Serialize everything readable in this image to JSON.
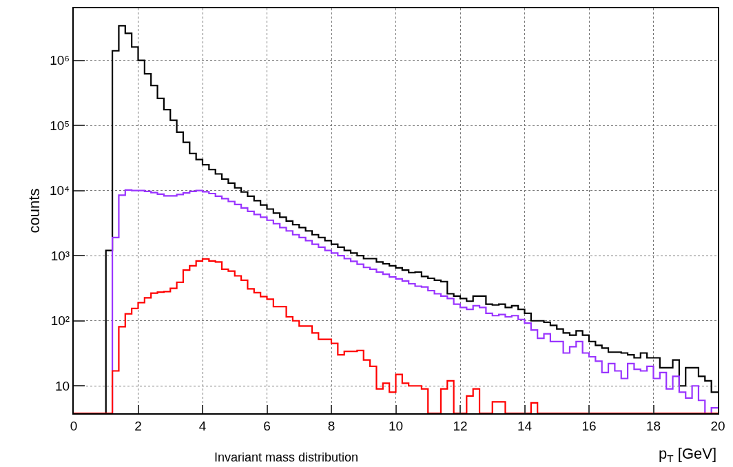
{
  "chart_data": {
    "type": "histogram",
    "xlabel": "p$_{T}$ [GeV]",
    "ylabel": "counts",
    "annotations": [
      "Invariant mass distribution"
    ],
    "bins": [
      0,
      0.2,
      0.4,
      0.6,
      0.8,
      1,
      1.2,
      1.4,
      1.6,
      1.8,
      2,
      2.2,
      2.4,
      2.6,
      2.8,
      3,
      3.2,
      3.4,
      3.6,
      3.8,
      4,
      4.2,
      4.4,
      4.6,
      4.8,
      5,
      5.2,
      5.4,
      5.6,
      5.8,
      6,
      6.2,
      6.4,
      6.6,
      6.8,
      7,
      7.2,
      7.4,
      7.6,
      7.8,
      8,
      8.2,
      8.4,
      8.6,
      8.8,
      9,
      9.2,
      9.4,
      9.6,
      9.8,
      10,
      10.2,
      10.4,
      10.6,
      10.8,
      11,
      11.2,
      11.4,
      11.6,
      11.8,
      12,
      12.2,
      12.4,
      12.6,
      12.8,
      13,
      13.2,
      13.4,
      13.6,
      13.8,
      14,
      14.2,
      14.4,
      14.6,
      14.8,
      15,
      15.2,
      15.4,
      15.6,
      15.8,
      16,
      16.2,
      16.4,
      16.6,
      16.8,
      17,
      17.2,
      17.4,
      17.6,
      17.8,
      18,
      18.2,
      18.4,
      18.6,
      18.8,
      19,
      19.2,
      19.4,
      19.6,
      19.8,
      20
    ],
    "series": [
      {
        "color": "#000000",
        "values": [
          null,
          null,
          null,
          null,
          null,
          1200,
          1400000,
          3400000,
          2600000,
          1600000,
          1000000,
          620000,
          410000,
          260000,
          175000,
          120000,
          79000,
          55000,
          37000,
          30000,
          25000,
          21000,
          18000,
          15000,
          13000,
          11000,
          9500,
          8200,
          7000,
          6000,
          5200,
          4500,
          3900,
          3400,
          3000,
          2700,
          2400,
          2100,
          1900,
          1700,
          1500,
          1350,
          1200,
          1100,
          1000,
          900,
          900,
          800,
          750,
          700,
          650,
          600,
          550,
          560,
          480,
          450,
          420,
          400,
          260,
          240,
          220,
          200,
          240,
          240,
          180,
          175,
          180,
          160,
          170,
          150,
          130,
          100,
          100,
          95,
          85,
          75,
          65,
          60,
          70,
          60,
          48,
          42,
          38,
          33,
          33,
          32,
          30,
          27,
          32,
          27,
          27,
          19,
          19,
          25,
          10,
          19,
          19,
          14,
          12,
          8
        ]
      },
      {
        "color": "#9933ff",
        "values": [
          null,
          null,
          null,
          null,
          null,
          null,
          1900,
          8500,
          10200,
          10000,
          10000,
          9700,
          9300,
          8800,
          8300,
          8300,
          8700,
          9200,
          9700,
          10000,
          9600,
          9000,
          8200,
          7500,
          6800,
          6100,
          5400,
          4800,
          4300,
          3900,
          3500,
          3100,
          2700,
          2400,
          2100,
          1900,
          1700,
          1500,
          1350,
          1200,
          1100,
          1000,
          900,
          820,
          740,
          660,
          620,
          560,
          520,
          470,
          440,
          410,
          370,
          340,
          330,
          290,
          260,
          240,
          220,
          180,
          160,
          150,
          170,
          160,
          130,
          120,
          125,
          115,
          120,
          105,
          92,
          72,
          54,
          63,
          48,
          48,
          32,
          40,
          48,
          32,
          28,
          24,
          16,
          22,
          17,
          13,
          22,
          18,
          17,
          20,
          13,
          16,
          9,
          14,
          8,
          6.5,
          10,
          6,
          null,
          4.6
        ]
      },
      {
        "color": "#ff0000",
        "values": [
          null,
          null,
          null,
          null,
          null,
          null,
          17,
          81,
          128,
          155,
          190,
          225,
          265,
          275,
          280,
          315,
          390,
          600,
          700,
          830,
          890,
          830,
          800,
          620,
          580,
          490,
          420,
          310,
          270,
          235,
          215,
          165,
          165,
          115,
          100,
          83,
          83,
          65,
          52,
          52,
          45,
          30,
          34,
          34,
          35,
          25,
          20,
          9,
          11,
          8,
          15,
          11,
          10,
          10,
          9,
          null,
          null,
          9,
          12,
          null,
          null,
          7,
          9,
          null,
          null,
          5.7,
          5.7,
          null,
          null,
          null,
          null,
          5.5,
          null,
          null,
          null,
          null,
          null,
          null,
          null,
          null,
          null,
          null,
          null,
          null,
          null,
          null,
          null,
          null,
          null,
          null,
          null,
          null,
          null,
          null,
          null,
          null,
          null,
          null,
          null,
          null
        ]
      }
    ],
    "xlim": [
      0,
      20
    ],
    "xticks": [
      0,
      2,
      4,
      6,
      8,
      10,
      12,
      14,
      16,
      18,
      20
    ],
    "log": true,
    "ylim": [
      3.8,
      6300000
    ],
    "yticks": [
      {
        "value": 10,
        "label": "10"
      },
      {
        "value": 100,
        "label": "10²"
      },
      {
        "value": 1000,
        "label": "10³"
      },
      {
        "value": 10000,
        "label": "10⁴"
      },
      {
        "value": 100000,
        "label": "10⁵"
      },
      {
        "value": 1000000,
        "label": "10⁶"
      }
    ],
    "grid": true,
    "line_style": "solid"
  }
}
